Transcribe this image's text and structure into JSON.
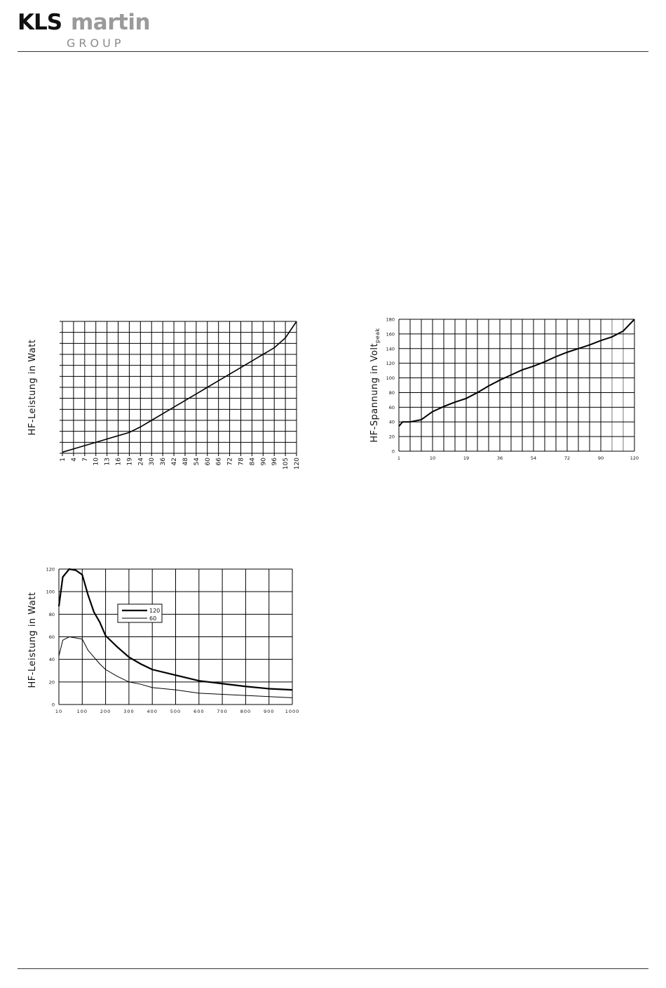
{
  "header": {
    "logo_primary": "KLS",
    "logo_secondary": "martin",
    "logo_group": "GROUP"
  },
  "chart_data": [
    {
      "type": "line",
      "ylabel": "HF-Leistung in Watt",
      "xlabel": "",
      "categories": [
        "1",
        "4",
        "7",
        "10",
        "13",
        "16",
        "19",
        "24",
        "30",
        "36",
        "42",
        "48",
        "54",
        "60",
        "66",
        "72",
        "78",
        "84",
        "90",
        "96",
        "105",
        "120"
      ],
      "series": [
        {
          "values": [
            0.1,
            0.4,
            0.7,
            1.0,
            1.3,
            1.6,
            1.9,
            2.4,
            3.0,
            3.6,
            4.2,
            4.8,
            5.4,
            6.0,
            6.6,
            7.2,
            7.8,
            8.4,
            9.0,
            9.6,
            10.5,
            12.0
          ]
        }
      ],
      "ylim": [
        0,
        12
      ],
      "y_tick_labels_shown": false,
      "grid": true
    },
    {
      "type": "line",
      "ylabel": "HF-Spannung in Volt",
      "ylabel_subscript": "peak",
      "xlabel": "",
      "categories": [
        "1",
        "4",
        "7",
        "10",
        "13",
        "16",
        "19",
        "24",
        "30",
        "36",
        "42",
        "48",
        "54",
        "60",
        "66",
        "72",
        "78",
        "84",
        "90",
        "96",
        "105",
        "120"
      ],
      "x_tick_labels": [
        "1",
        "10",
        "19",
        "36",
        "54",
        "72",
        "90",
        "120"
      ],
      "series": [
        {
          "values": [
            34,
            40,
            43,
            54,
            61,
            67,
            72,
            80,
            89,
            97,
            104,
            111,
            116,
            122,
            129,
            135,
            140,
            145,
            151,
            156,
            164,
            180
          ]
        }
      ],
      "ylim": [
        0,
        180
      ],
      "y_ticks": [
        "0",
        "20",
        "40",
        "60",
        "80",
        "100",
        "120",
        "140",
        "160",
        "180"
      ],
      "grid": true
    },
    {
      "type": "line",
      "ylabel": "HF-Leistung in Watt",
      "xlabel": "",
      "x_ticks": [
        "10",
        "100",
        "200",
        "300",
        "400",
        "500",
        "600",
        "700",
        "800",
        "900",
        "1000"
      ],
      "y_ticks": [
        "0",
        "20",
        "40",
        "60",
        "80",
        "100",
        "120"
      ],
      "ylim": [
        0,
        120
      ],
      "xlim": [
        10,
        1000
      ],
      "legend": "upper-center",
      "grid": true,
      "series": [
        {
          "name": "120",
          "x": [
            10,
            25,
            50,
            75,
            100,
            125,
            150,
            175,
            200,
            250,
            300,
            350,
            400,
            500,
            600,
            700,
            800,
            900,
            1000
          ],
          "y": [
            87,
            113,
            120,
            119,
            115,
            97,
            82,
            73,
            61,
            51,
            42,
            36,
            31,
            26,
            21,
            18.5,
            16,
            14,
            13
          ]
        },
        {
          "name": "60",
          "x": [
            10,
            25,
            50,
            75,
            100,
            125,
            150,
            175,
            200,
            250,
            300,
            350,
            400,
            500,
            600,
            700,
            800,
            900,
            1000
          ],
          "y": [
            43,
            57,
            60,
            59,
            58,
            48,
            42,
            36,
            31,
            25,
            20,
            18,
            15,
            13,
            10,
            9,
            8,
            7,
            6
          ]
        }
      ]
    }
  ]
}
